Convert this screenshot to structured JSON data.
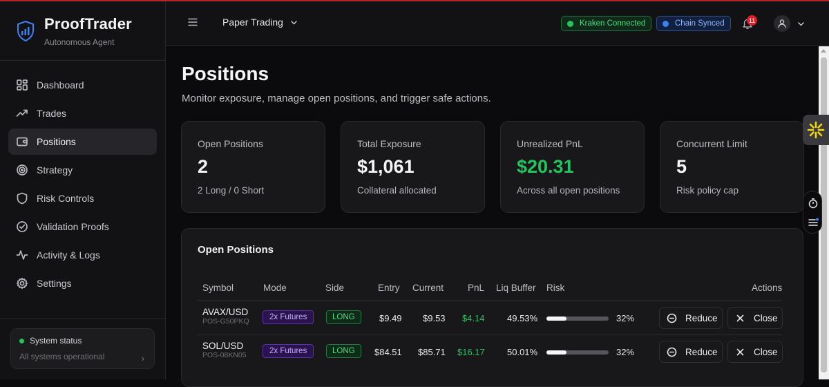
{
  "brand": {
    "name": "ProofTrader",
    "subtitle": "Autonomous Agent"
  },
  "sidebar": {
    "items": [
      {
        "label": "Dashboard",
        "icon": "grid-icon"
      },
      {
        "label": "Trades",
        "icon": "trending-up-icon"
      },
      {
        "label": "Positions",
        "icon": "wallet-icon",
        "active": true
      },
      {
        "label": "Strategy",
        "icon": "target-icon"
      },
      {
        "label": "Risk Controls",
        "icon": "shield-icon"
      },
      {
        "label": "Validation Proofs",
        "icon": "check-circle-icon"
      },
      {
        "label": "Activity & Logs",
        "icon": "activity-icon"
      },
      {
        "label": "Settings",
        "icon": "gear-icon"
      }
    ],
    "status": {
      "title": "System status",
      "subtitle": "All systems operational"
    }
  },
  "topbar": {
    "mode": "Paper Trading",
    "badges": {
      "kraken": "Kraken Connected",
      "chain": "Chain Synced"
    },
    "notifications": "11"
  },
  "page": {
    "title": "Positions",
    "subtitle": "Monitor exposure, manage open positions, and trigger safe actions."
  },
  "cards": [
    {
      "label": "Open Positions",
      "value": "2",
      "sub": "2 Long / 0 Short"
    },
    {
      "label": "Total Exposure",
      "value": "$1,061",
      "sub": "Collateral allocated"
    },
    {
      "label": "Unrealized PnL",
      "value": "$20.31",
      "sub": "Across all open positions"
    },
    {
      "label": "Concurrent Limit",
      "value": "5",
      "sub": "Risk policy cap"
    }
  ],
  "table": {
    "title": "Open Positions",
    "columns": [
      "Symbol",
      "Mode",
      "Side",
      "Entry",
      "Current",
      "PnL",
      "Liq Buffer",
      "Risk",
      "Actions"
    ],
    "rows": [
      {
        "symbol": "AVAX/USD",
        "id": "POS-G50PKQ",
        "mode": "2x Futures",
        "side": "LONG",
        "entry": "$9.49",
        "current": "$9.53",
        "pnl": "$4.14",
        "liq": "49.53%",
        "risk": "32%",
        "risk_value": 0.32,
        "reduce": "Reduce",
        "close": "Close"
      },
      {
        "symbol": "SOL/USD",
        "id": "POS-08KN05",
        "mode": "2x Futures",
        "side": "LONG",
        "entry": "$84.51",
        "current": "$85.71",
        "pnl": "$16.17",
        "liq": "50.01%",
        "risk": "32%",
        "risk_value": 0.32,
        "reduce": "Reduce",
        "close": "Close"
      }
    ]
  },
  "colors": {
    "accent_green": "#22c55e",
    "accent_blue": "#3b82f6",
    "alert_red": "#e11d2a",
    "mode_purple": "#5b2fa8"
  }
}
